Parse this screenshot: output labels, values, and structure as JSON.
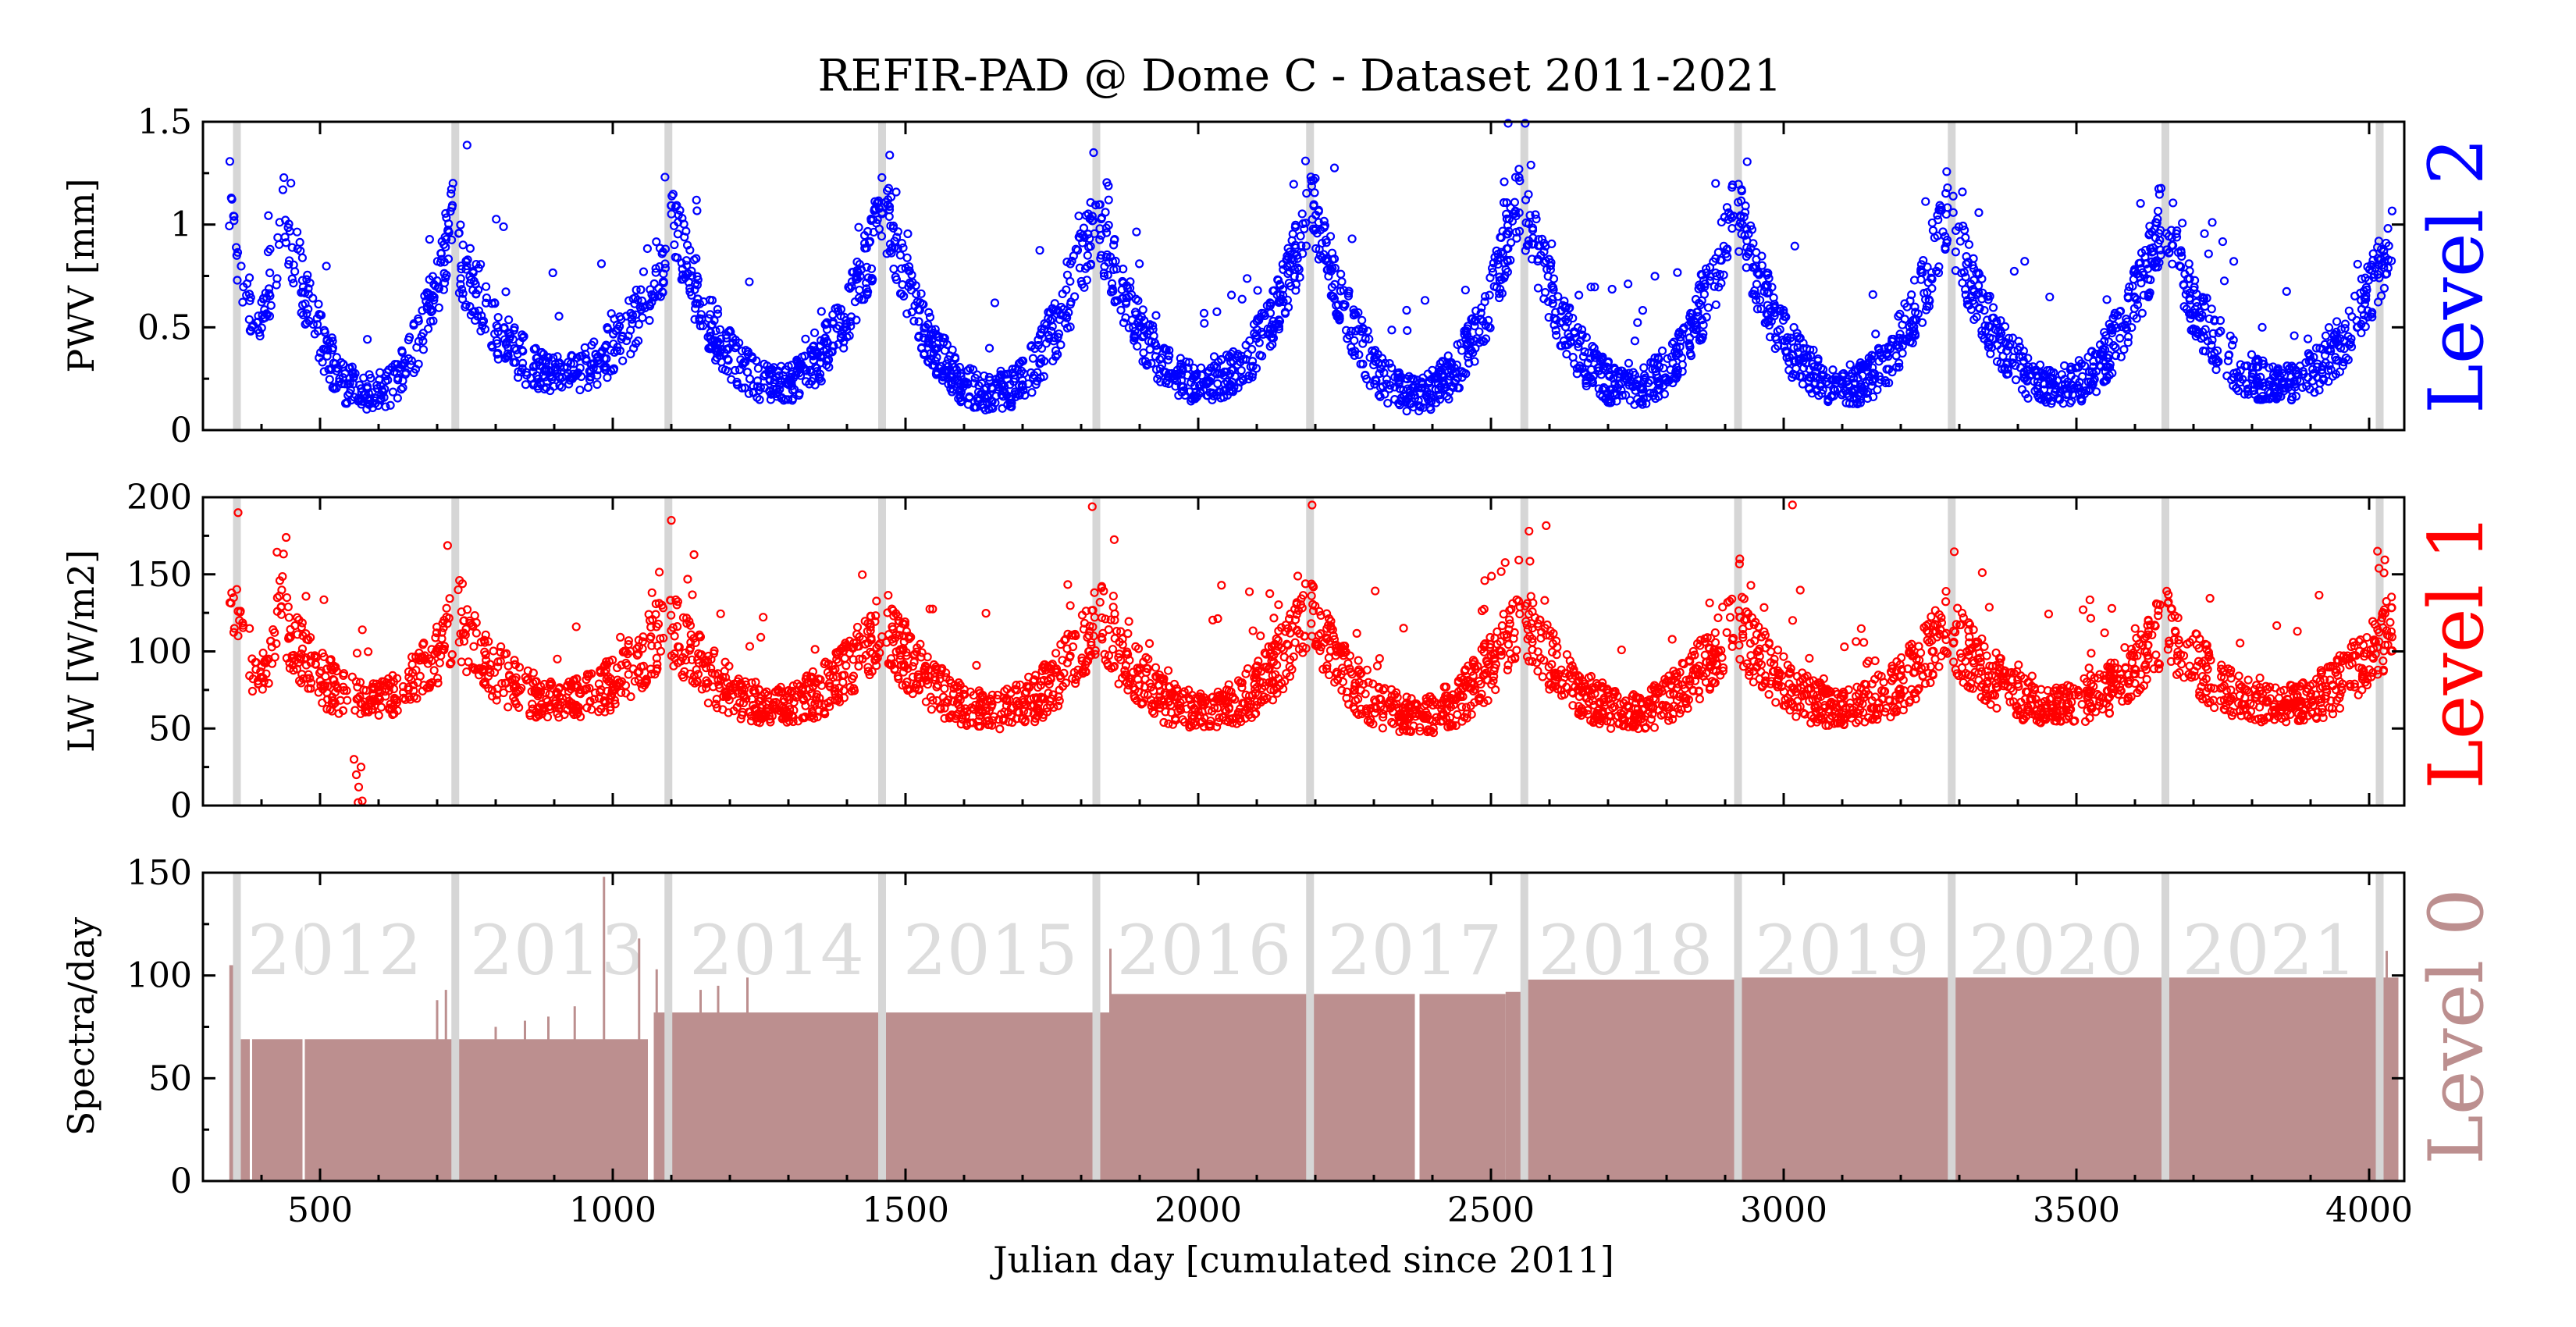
{
  "chart_data": [
    {
      "type": "scatter",
      "title": "REFIR-PAD @ Dome C - Dataset 2011-2021",
      "xlabel": "",
      "ylabel": "PWV [mm]",
      "level_label": "Level 2",
      "color": "#0000ff",
      "xlim": [
        300,
        4060
      ],
      "ylim": [
        0,
        1.5
      ],
      "xticks": [
        500,
        1000,
        1500,
        2000,
        2500,
        3000,
        3500,
        4000
      ],
      "xtick_labels": [
        "",
        "",
        "",
        "",
        "",
        "",
        "",
        ""
      ],
      "yticks": [
        0,
        0.5,
        1,
        1.5
      ],
      "ytick_labels": [
        "0",
        "0.5",
        "1",
        "1.5"
      ],
      "season_seed": 11,
      "seasons": [
        {
          "start": 345,
          "end": 440,
          "min": 0.5,
          "edge": 1.1,
          "count": 60
        },
        {
          "start": 440,
          "end": 728,
          "min": 0.15,
          "edge": 1.0,
          "count": 260
        },
        {
          "start": 735,
          "end": 1090,
          "min": 0.25,
          "edge": 0.8,
          "count": 320
        },
        {
          "start": 1098,
          "end": 1460,
          "min": 0.2,
          "edge": 1.0,
          "count": 380
        },
        {
          "start": 1466,
          "end": 1825,
          "min": 0.15,
          "edge": 1.0,
          "count": 380
        },
        {
          "start": 1830,
          "end": 2185,
          "min": 0.2,
          "edge": 0.95,
          "count": 380
        },
        {
          "start": 2192,
          "end": 2550,
          "min": 0.15,
          "edge": 1.1,
          "count": 380
        },
        {
          "start": 2558,
          "end": 2915,
          "min": 0.18,
          "edge": 1.0,
          "count": 380
        },
        {
          "start": 2922,
          "end": 3280,
          "min": 0.18,
          "edge": 1.0,
          "count": 380
        },
        {
          "start": 3288,
          "end": 3645,
          "min": 0.18,
          "edge": 0.95,
          "count": 380
        },
        {
          "start": 3652,
          "end": 4040,
          "min": 0.2,
          "edge": 0.9,
          "count": 380
        }
      ]
    },
    {
      "type": "scatter",
      "title": "",
      "xlabel": "",
      "ylabel": "LW [W/m2]",
      "level_label": "Level 1",
      "color": "#ff0000",
      "xlim": [
        300,
        4060
      ],
      "ylim": [
        0,
        200
      ],
      "xticks": [
        500,
        1000,
        1500,
        2000,
        2500,
        3000,
        3500,
        4000
      ],
      "xtick_labels": [
        "",
        "",
        "",
        "",
        "",
        "",
        "",
        ""
      ],
      "yticks": [
        0,
        50,
        100,
        150,
        200
      ],
      "ytick_labels": [
        "0",
        "50",
        "100",
        "150",
        "200"
      ],
      "season_seed": 29,
      "seasons": [
        {
          "start": 345,
          "end": 440,
          "min": 80,
          "edge": 150,
          "count": 60
        },
        {
          "start": 440,
          "end": 728,
          "min": 65,
          "edge": 110,
          "count": 260
        },
        {
          "start": 735,
          "end": 1090,
          "min": 65,
          "edge": 110,
          "count": 320
        },
        {
          "start": 1098,
          "end": 1460,
          "min": 62,
          "edge": 110,
          "count": 380
        },
        {
          "start": 1466,
          "end": 1825,
          "min": 58,
          "edge": 110,
          "count": 380
        },
        {
          "start": 1830,
          "end": 2185,
          "min": 58,
          "edge": 115,
          "count": 380
        },
        {
          "start": 2192,
          "end": 2550,
          "min": 55,
          "edge": 115,
          "count": 380
        },
        {
          "start": 2558,
          "end": 2915,
          "min": 58,
          "edge": 115,
          "count": 380
        },
        {
          "start": 2922,
          "end": 3280,
          "min": 60,
          "edge": 110,
          "count": 380
        },
        {
          "start": 3288,
          "end": 3645,
          "min": 62,
          "edge": 105,
          "count": 380
        },
        {
          "start": 3652,
          "end": 4040,
          "min": 62,
          "edge": 110,
          "count": 380
        }
      ],
      "extra_points": [
        {
          "x": 558,
          "y": 30
        },
        {
          "x": 562,
          "y": 20
        },
        {
          "x": 566,
          "y": 12
        },
        {
          "x": 570,
          "y": 25
        },
        {
          "x": 565,
          "y": 2
        },
        {
          "x": 572,
          "y": 3
        },
        {
          "x": 360,
          "y": 190
        },
        {
          "x": 1100,
          "y": 185
        },
        {
          "x": 2565,
          "y": 178
        },
        {
          "x": 3015,
          "y": 195
        }
      ]
    },
    {
      "type": "bar",
      "title": "",
      "xlabel": "Julian day [cumulated since 2011]",
      "ylabel": "Spectra/day",
      "level_label": "Level 0",
      "color": "#bc8f8f",
      "xlim": [
        300,
        4060
      ],
      "ylim": [
        0,
        150
      ],
      "xticks": [
        500,
        1000,
        1500,
        2000,
        2500,
        3000,
        3500,
        4000
      ],
      "xtick_labels": [
        "500",
        "1000",
        "1500",
        "2000",
        "2500",
        "3000",
        "3500",
        "4000"
      ],
      "yticks": [
        0,
        50,
        100,
        150
      ],
      "ytick_labels": [
        "0",
        "50",
        "100",
        "150"
      ],
      "segments": [
        {
          "start": 345,
          "end": 360,
          "value": 105
        },
        {
          "start": 360,
          "end": 1060,
          "value": 69
        },
        {
          "start": 1070,
          "end": 1120,
          "value": 82
        },
        {
          "start": 1120,
          "end": 1850,
          "value": 82
        },
        {
          "start": 1850,
          "end": 2525,
          "value": 91
        },
        {
          "start": 2525,
          "end": 2555,
          "value": 92
        },
        {
          "start": 2555,
          "end": 2920,
          "value": 98
        },
        {
          "start": 2920,
          "end": 4050,
          "value": 99
        }
      ],
      "spikes": [
        {
          "x": 355,
          "value": 107
        },
        {
          "x": 700,
          "value": 88
        },
        {
          "x": 715,
          "value": 93
        },
        {
          "x": 800,
          "value": 75
        },
        {
          "x": 850,
          "value": 78
        },
        {
          "x": 890,
          "value": 80
        },
        {
          "x": 935,
          "value": 85
        },
        {
          "x": 985,
          "value": 148
        },
        {
          "x": 1045,
          "value": 118
        },
        {
          "x": 1075,
          "value": 103
        },
        {
          "x": 1150,
          "value": 93
        },
        {
          "x": 1180,
          "value": 95
        },
        {
          "x": 1230,
          "value": 99
        },
        {
          "x": 1850,
          "value": 113
        },
        {
          "x": 4030,
          "value": 112
        }
      ],
      "dropouts": [
        {
          "start": 380,
          "end": 384
        },
        {
          "start": 470,
          "end": 474
        },
        {
          "start": 1060,
          "end": 1070
        },
        {
          "start": 2370,
          "end": 2378
        }
      ],
      "year_labels": [
        {
          "label": "2012",
          "x": 525
        },
        {
          "label": "2013",
          "x": 905
        },
        {
          "label": "2014",
          "x": 1280
        },
        {
          "label": "2015",
          "x": 1645
        },
        {
          "label": "2016",
          "x": 2010
        },
        {
          "label": "2017",
          "x": 2370
        },
        {
          "label": "2018",
          "x": 2730
        },
        {
          "label": "2019",
          "x": 3100
        },
        {
          "label": "2020",
          "x": 3465
        },
        {
          "label": "2021",
          "x": 3830
        }
      ]
    }
  ],
  "year_boundaries": [
    358,
    731,
    1095,
    1460,
    1826,
    2191,
    2557,
    2922,
    3287,
    3652,
    4018
  ],
  "gap_color": "#d6d6d6"
}
